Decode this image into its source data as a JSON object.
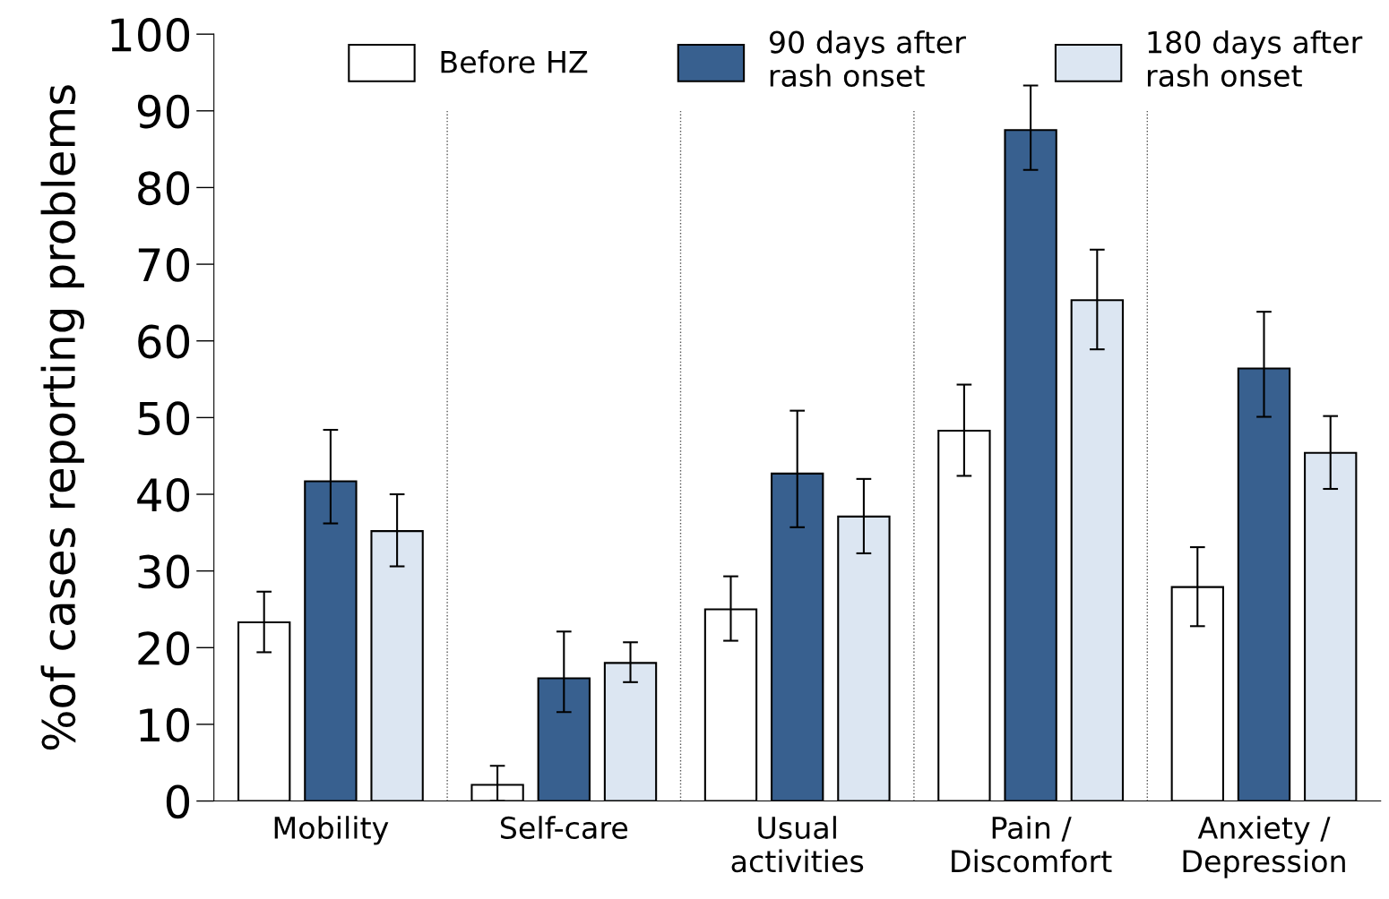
{
  "chart_data": {
    "type": "bar",
    "ylabel": "%of cases reporting problems",
    "categories": [
      "Mobility",
      "Self-care",
      "Usual\nactivities",
      "Pain /\nDiscomfort",
      "Anxiety /\nDepression"
    ],
    "series": [
      {
        "name": "Before HZ",
        "color": "#ffffff",
        "values": [
          23.3,
          2.1,
          25.0,
          48.3,
          27.9
        ],
        "errors": [
          [
            19.4,
            27.3
          ],
          [
            0,
            4.6
          ],
          [
            20.9,
            29.3
          ],
          [
            42.4,
            54.3
          ],
          [
            22.8,
            33.1
          ]
        ]
      },
      {
        "name": "90 days after\nrash onset",
        "color": "#38608f",
        "values": [
          41.7,
          16.0,
          42.7,
          87.5,
          56.4
        ],
        "errors": [
          [
            36.2,
            48.4
          ],
          [
            11.6,
            22.1
          ],
          [
            35.7,
            50.9
          ],
          [
            82.3,
            93.3
          ],
          [
            50.1,
            63.8
          ]
        ]
      },
      {
        "name": "180 days after\nrash onset",
        "color": "#dce6f2",
        "values": [
          35.2,
          18.0,
          37.1,
          65.3,
          45.4
        ],
        "errors": [
          [
            30.6,
            40.0
          ],
          [
            15.5,
            20.7
          ],
          [
            32.3,
            42.0
          ],
          [
            58.9,
            71.9
          ],
          [
            40.7,
            50.2
          ]
        ]
      }
    ],
    "ylim": [
      0,
      100
    ],
    "yticks": [
      0,
      10,
      20,
      30,
      40,
      50,
      60,
      70,
      80,
      90,
      100
    ],
    "legend": "top",
    "grid": false
  }
}
